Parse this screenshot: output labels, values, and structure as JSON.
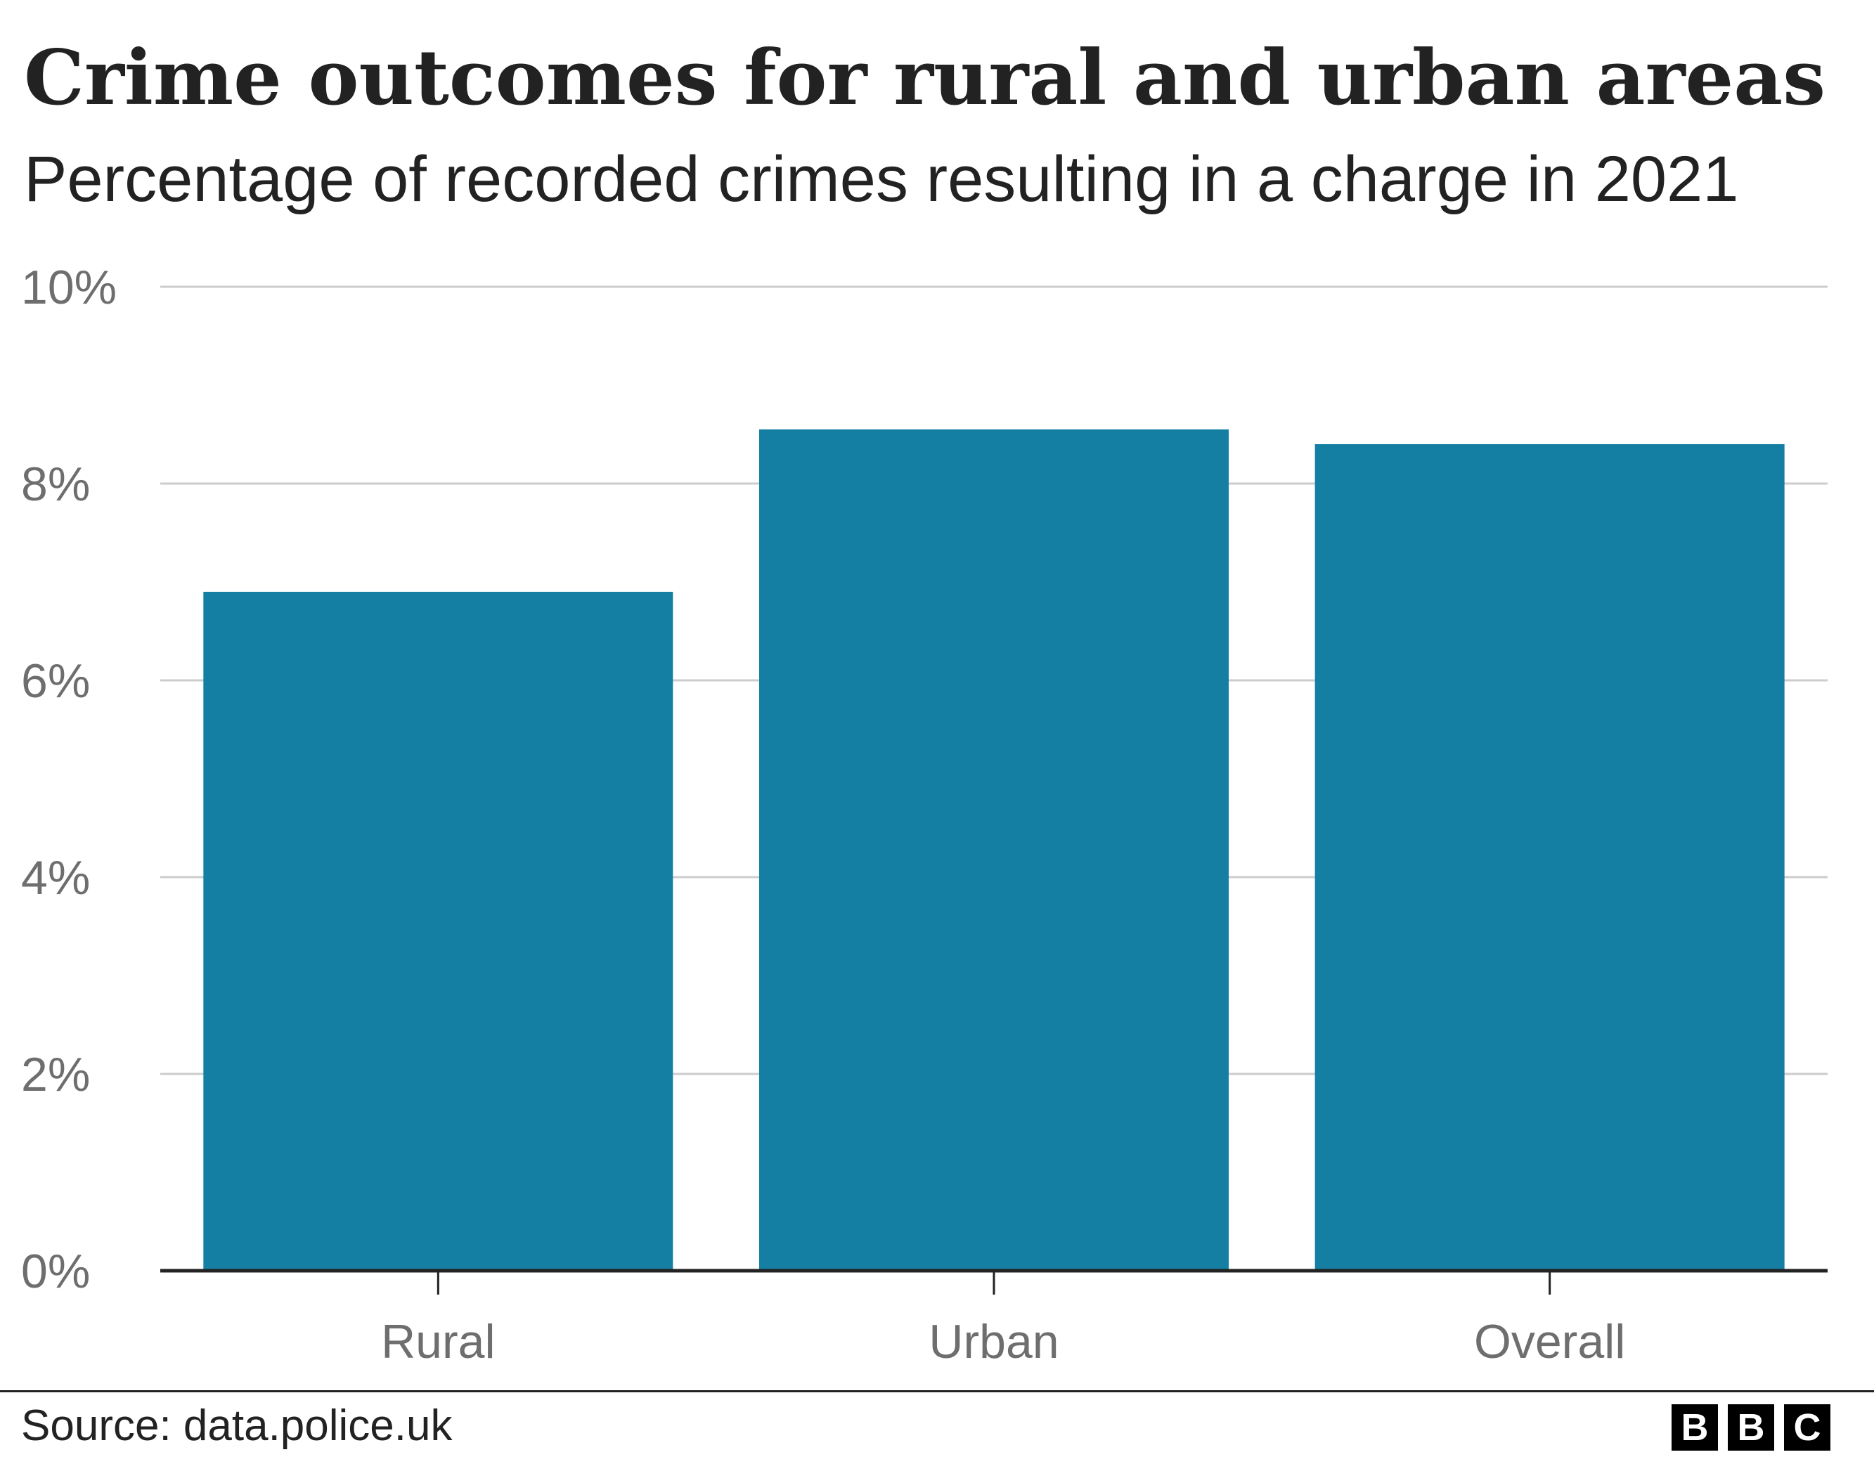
{
  "title": "Crime outcomes for rural and urban areas",
  "subtitle": "Percentage of recorded crimes resulting in a charge in 2021",
  "source": "Source: data.police.uk",
  "logo": [
    "B",
    "B",
    "C"
  ],
  "colors": {
    "bar": "#157FA3",
    "grid": "#CCCCCC",
    "axis": "#222222",
    "tick_text": "#6E6E6E"
  },
  "chart_data": {
    "type": "bar",
    "title": "Crime outcomes for rural and urban areas",
    "subtitle": "Percentage of recorded crimes resulting in a charge in 2021",
    "categories": [
      "Rural",
      "Urban",
      "Overall"
    ],
    "values": [
      6.9,
      8.55,
      8.4
    ],
    "ylim": [
      0,
      10
    ],
    "yticks": [
      0,
      2,
      4,
      6,
      8,
      10
    ],
    "ytick_labels": [
      "0%",
      "2%",
      "4%",
      "6%",
      "8%",
      "10%"
    ],
    "xlabel": "",
    "ylabel": "",
    "grid": true,
    "legend": "none"
  }
}
